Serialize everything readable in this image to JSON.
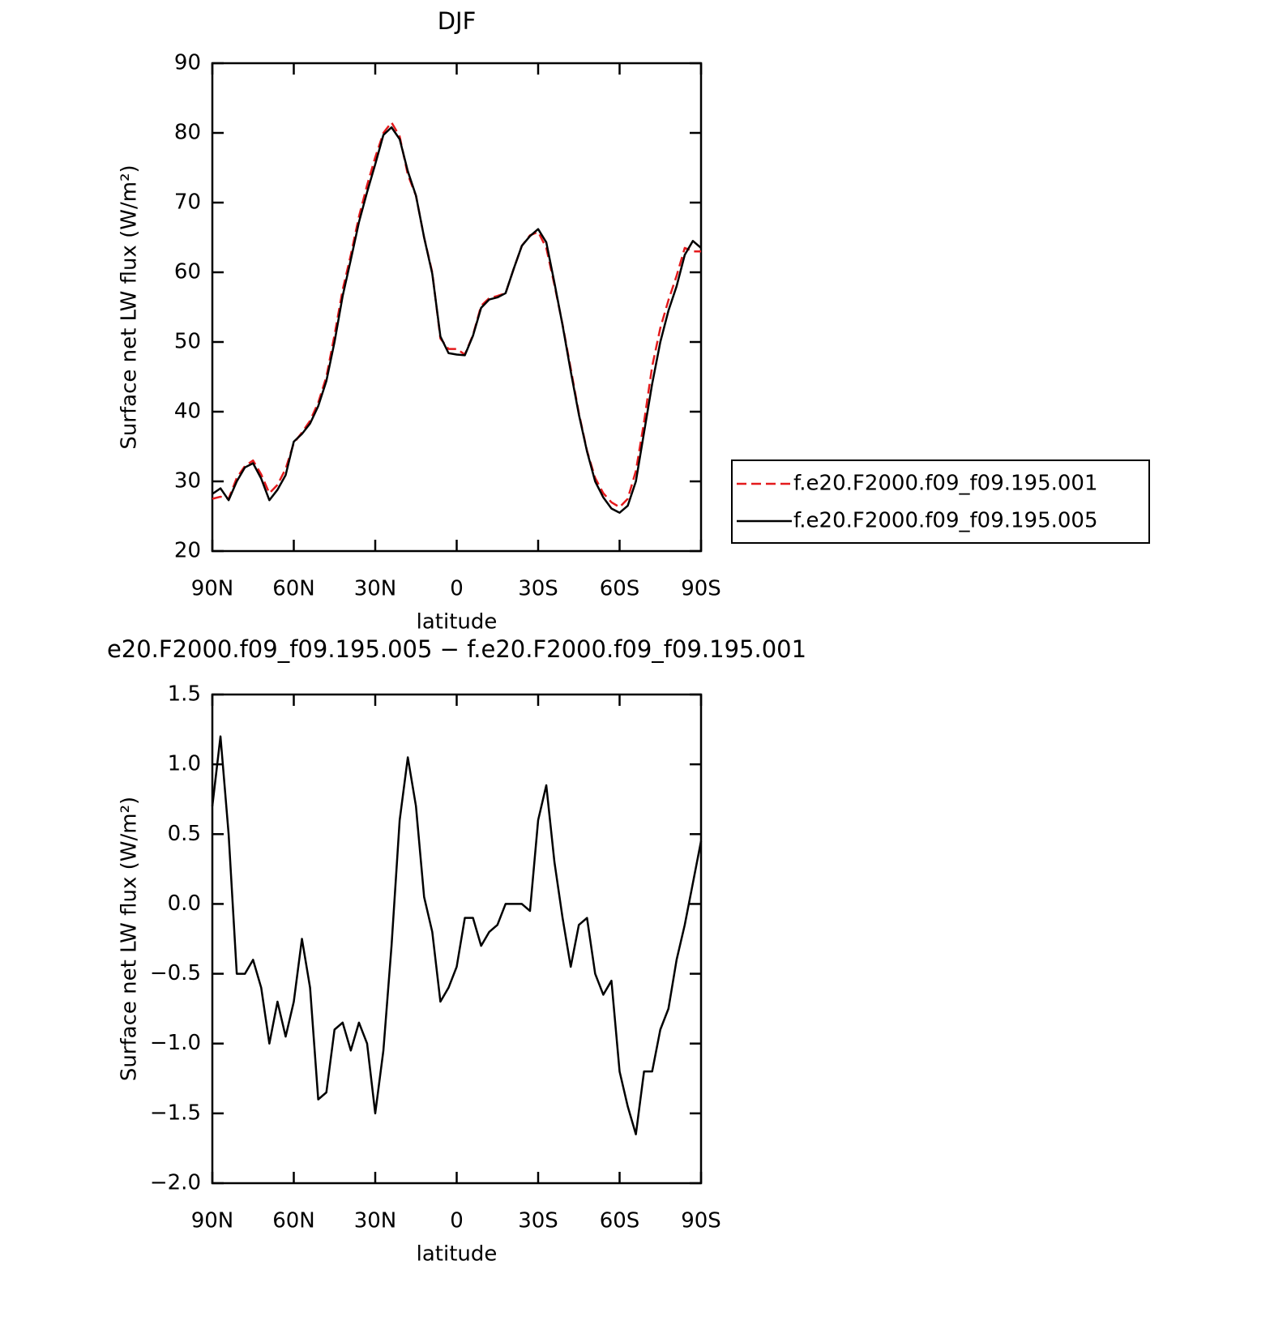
{
  "chart_data": [
    {
      "type": "line",
      "title": "DJF",
      "xlabel": "latitude",
      "ylabel": "Surface net LW flux (W/m²)",
      "x": [
        90,
        87,
        84,
        81,
        78,
        75,
        72,
        69,
        66,
        63,
        60,
        57,
        54,
        51,
        48,
        45,
        42,
        39,
        36,
        33,
        30,
        27,
        24,
        21,
        18,
        15,
        12,
        9,
        6,
        3,
        0,
        -3,
        -6,
        -9,
        -12,
        -15,
        -18,
        -21,
        -24,
        -27,
        -30,
        -33,
        -36,
        -39,
        -42,
        -45,
        -48,
        -51,
        -54,
        -57,
        -60,
        -63,
        -66,
        -69,
        -72,
        -75,
        -78,
        -81,
        -84,
        -87,
        -90
      ],
      "xlim": [
        90,
        -90
      ],
      "xticks": [
        {
          "value": 90,
          "label": "90N"
        },
        {
          "value": 60,
          "label": "60N"
        },
        {
          "value": 30,
          "label": "30N"
        },
        0,
        {
          "value": -30,
          "label": "30S"
        },
        {
          "value": -60,
          "label": "60S"
        },
        {
          "value": -90,
          "label": "90S"
        }
      ],
      "ylim": [
        20,
        90
      ],
      "yticks": [
        20,
        30,
        40,
        50,
        60,
        70,
        80,
        90
      ],
      "legend": "right",
      "series": [
        {
          "name": "f.e20.F2000.f09_f09.195.001",
          "color": "#e41a1c",
          "dash": true,
          "values": [
            27.5,
            27.8,
            27.5,
            30.5,
            32.2,
            33,
            31,
            28.3,
            29.5,
            31.8,
            35.5,
            37,
            38.7,
            41.3,
            45,
            51,
            57.5,
            62.5,
            68,
            72.5,
            76.5,
            80,
            81.5,
            79.5,
            74,
            71,
            65,
            60,
            50.5,
            49,
            49,
            48.2,
            51,
            55.2,
            56.3,
            56.6,
            57,
            60.5,
            63.8,
            65.3,
            65.8,
            63.5,
            58.2,
            52.5,
            46.2,
            39.8,
            34.4,
            30.5,
            28.3,
            27,
            26.3,
            27.5,
            31.5,
            38.5,
            46.5,
            52,
            56,
            59.5,
            63.5,
            63,
            63
          ]
        },
        {
          "name": "f.e20.F2000.f09_f09.195.005",
          "color": "#000000",
          "dash": false,
          "values": [
            28.2,
            29,
            27.3,
            30,
            32,
            32.6,
            30.4,
            27.3,
            28.8,
            30.9,
            35.7,
            36.8,
            38.3,
            40.8,
            44.4,
            50,
            56.6,
            61.8,
            67.2,
            71.5,
            75.5,
            79.7,
            80.8,
            79.1,
            74.5,
            71,
            65,
            59.8,
            50.8,
            48.4,
            48.2,
            48.1,
            50.9,
            54.9,
            56.1,
            56.4,
            57,
            60.5,
            63.8,
            65.2,
            66.2,
            64.3,
            58.5,
            52.4,
            45.8,
            39.6,
            34.3,
            30,
            27.7,
            26.1,
            25.5,
            26.5,
            30,
            37,
            44,
            50,
            54.5,
            58,
            62.5,
            64.5,
            63.5
          ]
        }
      ]
    },
    {
      "type": "line",
      "title": "e20.F2000.f09_f09.195.005 − f.e20.F2000.f09_f09.195.001",
      "xlabel": "latitude",
      "ylabel": "Surface net LW flux (W/m²)",
      "x": [
        90,
        87,
        84,
        81,
        78,
        75,
        72,
        69,
        66,
        63,
        60,
        57,
        54,
        51,
        48,
        45,
        42,
        39,
        36,
        33,
        30,
        27,
        24,
        21,
        18,
        15,
        12,
        9,
        6,
        3,
        0,
        -3,
        -6,
        -9,
        -12,
        -15,
        -18,
        -21,
        -24,
        -27,
        -30,
        -33,
        -36,
        -39,
        -42,
        -45,
        -48,
        -51,
        -54,
        -57,
        -60,
        -63,
        -66,
        -69,
        -72,
        -75,
        -78,
        -81,
        -84,
        -87,
        -90
      ],
      "xlim": [
        90,
        -90
      ],
      "xticks": [
        {
          "value": 90,
          "label": "90N"
        },
        {
          "value": 60,
          "label": "60N"
        },
        {
          "value": 30,
          "label": "30N"
        },
        0,
        {
          "value": -30,
          "label": "30S"
        },
        {
          "value": -60,
          "label": "60S"
        },
        {
          "value": -90,
          "label": "90S"
        }
      ],
      "ylim": [
        -2,
        1.5
      ],
      "yticks": [
        {
          "value": -2,
          "label": "−2.0"
        },
        {
          "value": -1.5,
          "label": "−1.5"
        },
        {
          "value": -1,
          "label": "−1.0"
        },
        {
          "value": -0.5,
          "label": "−0.5"
        },
        {
          "value": 0,
          "label": "0.0"
        },
        0.5,
        {
          "value": 1,
          "label": "1.0"
        },
        1.5
      ],
      "series": [
        {
          "color": "#000000",
          "dash": false,
          "values": [
            0.7,
            1.2,
            0.5,
            -0.5,
            -0.5,
            -0.4,
            -0.6,
            -1.0,
            -0.7,
            -0.95,
            -0.7,
            -0.25,
            -0.6,
            -1.4,
            -1.35,
            -0.9,
            -0.85,
            -1.05,
            -0.85,
            -1.0,
            -1.5,
            -1.05,
            -0.3,
            0.6,
            1.05,
            0.7,
            0.05,
            -0.2,
            -0.7,
            -0.6,
            -0.45,
            -0.1,
            -0.1,
            -0.3,
            -0.2,
            -0.15,
            0.0,
            0.0,
            0.0,
            -0.05,
            0.6,
            0.85,
            0.3,
            -0.1,
            -0.45,
            -0.15,
            -0.1,
            -0.5,
            -0.65,
            -0.55,
            -1.2,
            -1.45,
            -1.65,
            -1.2,
            -1.2,
            -0.9,
            -0.75,
            -0.4,
            -0.15,
            0.15,
            0.45
          ]
        }
      ]
    }
  ]
}
